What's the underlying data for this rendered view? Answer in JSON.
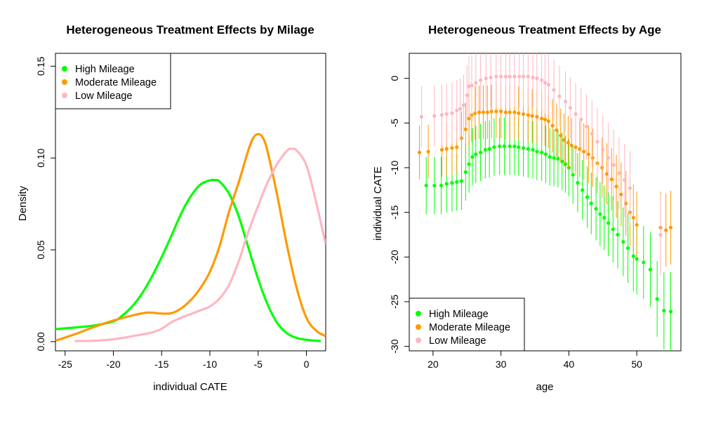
{
  "chart_data": [
    {
      "type": "line",
      "title": "Heterogeneous Treatment Effects by Milage",
      "xlabel": "individual CATE",
      "ylabel": "Density",
      "xlim": [
        -26,
        2
      ],
      "ylim": [
        -0.005,
        0.157
      ],
      "xticks": [
        -25,
        -20,
        -15,
        -10,
        -5,
        0
      ],
      "yticks": [
        0.0,
        0.05,
        0.1,
        0.15
      ],
      "xtick_labels": [
        "-25",
        "-20",
        "-15",
        "-10",
        "-5",
        "0"
      ],
      "ytick_labels": [
        "0.00",
        "0.05",
        "0.10",
        "0.15"
      ],
      "grid": false,
      "legend_position": "top-left",
      "series": [
        {
          "name": "High Mileage",
          "color": "#00ff00",
          "x": [
            -26,
            -24,
            -22,
            -20,
            -19,
            -18,
            -17,
            -16,
            -15,
            -14,
            -13,
            -12,
            -11,
            -10,
            -9.5,
            -9,
            -8,
            -7,
            -6,
            -5,
            -4,
            -3,
            -2,
            -1,
            0,
            1.5
          ],
          "y": [
            0.0068,
            0.0077,
            0.0088,
            0.011,
            0.0145,
            0.0195,
            0.0265,
            0.0355,
            0.046,
            0.0575,
            0.0695,
            0.079,
            0.0855,
            0.0878,
            0.088,
            0.0872,
            0.0805,
            0.068,
            0.051,
            0.034,
            0.02,
            0.01,
            0.0045,
            0.002,
            0.001,
            0.0003
          ]
        },
        {
          "name": "Moderate Mileage",
          "color": "#ff9900",
          "x": [
            -26,
            -24,
            -22,
            -20,
            -18,
            -16.5,
            -15,
            -14,
            -13,
            -12,
            -11,
            -10,
            -9,
            -8,
            -7,
            -6,
            -5.5,
            -5,
            -4.5,
            -4,
            -3,
            -2,
            -1,
            0,
            1,
            2
          ],
          "y": [
            0.0005,
            0.004,
            0.008,
            0.0115,
            0.0143,
            0.0158,
            0.0153,
            0.0155,
            0.018,
            0.0225,
            0.029,
            0.038,
            0.052,
            0.071,
            0.087,
            0.1045,
            0.111,
            0.113,
            0.111,
            0.103,
            0.079,
            0.052,
            0.029,
            0.013,
            0.006,
            0.003
          ]
        },
        {
          "name": "Low Mileage",
          "color": "#ffb6c1",
          "x": [
            -24,
            -22,
            -20,
            -18,
            -16,
            -15,
            -14,
            -13,
            -12,
            -11,
            -10,
            -9,
            -8,
            -7,
            -6,
            -5,
            -4,
            -3,
            -2,
            -1.5,
            -1,
            0,
            1,
            2
          ],
          "y": [
            0.0003,
            0.0005,
            0.0013,
            0.003,
            0.005,
            0.007,
            0.0105,
            0.013,
            0.015,
            0.017,
            0.0192,
            0.0235,
            0.031,
            0.044,
            0.06,
            0.074,
            0.087,
            0.097,
            0.104,
            0.105,
            0.104,
            0.096,
            0.076,
            0.053
          ]
        }
      ]
    },
    {
      "type": "scatter",
      "title": "Heterogeneous Treatment Effects by Age",
      "xlabel": "age",
      "ylabel": "individual CATE",
      "xlim": [
        16.5,
        56.5
      ],
      "ylim": [
        -30.5,
        2.8
      ],
      "xticks": [
        20,
        30,
        40,
        50
      ],
      "yticks": [
        0,
        -5,
        -10,
        -15,
        -20,
        -25,
        -30
      ],
      "xtick_labels": [
        "20",
        "30",
        "40",
        "50"
      ],
      "ytick_labels": [
        "0",
        "-5",
        "-10",
        "-15",
        "-20",
        "-25",
        "-30"
      ],
      "grid": false,
      "legend_position": "bottom-left",
      "error_bars": "vertical intervals around each point",
      "series": [
        {
          "name": "High Mileage",
          "color": "#00ff00",
          "age": [
            19,
            20.2,
            21.2,
            22,
            22.8,
            23.5,
            24.2,
            24.8,
            25.3,
            25.8,
            26.3,
            27,
            27.7,
            28.3,
            29,
            29.8,
            30.5,
            31.3,
            32,
            32.6,
            33.3,
            34,
            34.7,
            35.3,
            36,
            36.6,
            37.2,
            37.8,
            38.4,
            39,
            39.5,
            40,
            40.6,
            41.3,
            42,
            42.7,
            43.3,
            44,
            44.6,
            45.2,
            45.8,
            46.5,
            47.2,
            48,
            48.7,
            49.5,
            50,
            51,
            52,
            53,
            54,
            55
          ],
          "cate": [
            -12,
            -12,
            -12,
            -11.8,
            -11.7,
            -11.6,
            -11.5,
            -10.5,
            -9.6,
            -8.8,
            -8.5,
            -8.3,
            -8,
            -7.9,
            -7.7,
            -7.6,
            -7.6,
            -7.6,
            -7.6,
            -7.7,
            -7.8,
            -7.9,
            -8,
            -8.2,
            -8.3,
            -8.5,
            -8.8,
            -8.9,
            -9,
            -9.3,
            -9.6,
            -10,
            -10.8,
            -11.7,
            -12.5,
            -13.3,
            -14,
            -14.6,
            -15.2,
            -15.6,
            -16.2,
            -16.9,
            -17.5,
            -18.3,
            -19,
            -19.9,
            -20.2,
            -20.6,
            -21.4,
            -24.7,
            -26,
            -26.1
          ]
        },
        {
          "name": "Moderate Mileage",
          "color": "#ff9900",
          "age": [
            18,
            19.3,
            21.3,
            22,
            22.8,
            23.5,
            24.2,
            24.8,
            25.3,
            25.7,
            26.2,
            26.8,
            27.4,
            28,
            28.6,
            29.3,
            30,
            30.7,
            31.3,
            32,
            32.6,
            33.3,
            34,
            34.6,
            35.3,
            36,
            36.5,
            37,
            37.6,
            38.2,
            38.8,
            39.3,
            39.9,
            40.4,
            41,
            41.6,
            42.2,
            42.9,
            43.5,
            44.2,
            44.9,
            45.6,
            46.3,
            47,
            47.7,
            48.4,
            49,
            49.5,
            50,
            53.5,
            54.3,
            55
          ],
          "cate": [
            -8.3,
            -8.2,
            -8,
            -7.9,
            -7.8,
            -7.7,
            -6.7,
            -5.7,
            -4.5,
            -4.1,
            -3.9,
            -3.8,
            -3.8,
            -3.8,
            -3.7,
            -3.7,
            -3.7,
            -3.8,
            -3.8,
            -3.8,
            -3.9,
            -4,
            -4.1,
            -4.2,
            -4.3,
            -4.5,
            -4.6,
            -4.8,
            -5.3,
            -5.8,
            -6.4,
            -6.9,
            -7.2,
            -7.5,
            -7.7,
            -7.9,
            -8.2,
            -8.5,
            -8.9,
            -9.5,
            -10,
            -10.7,
            -11.3,
            -12.1,
            -13,
            -14,
            -15,
            -15.6,
            -16.4,
            -16.7,
            -17,
            -16.7
          ]
        },
        {
          "name": "Low Mileage",
          "color": "#ffb6c1",
          "age": [
            18.3,
            20.2,
            21.3,
            22,
            22.8,
            23.5,
            24,
            24.5,
            25,
            25.3,
            25.7,
            26.3,
            27,
            27.8,
            28.5,
            29.3,
            30,
            30.7,
            31.3,
            32,
            32.7,
            33.3,
            34,
            34.7,
            35.3,
            36,
            36.5,
            37,
            37.8,
            38.6,
            39.5,
            40.2,
            41,
            41.8,
            42.6,
            43.4,
            44.2,
            45,
            45.8,
            46.6,
            47.4,
            48.2,
            49,
            53.5
          ],
          "cate": [
            -4.3,
            -4.2,
            -4.1,
            -4,
            -3.9,
            -3.6,
            -3.4,
            -3,
            -1.9,
            -0.9,
            -0.8,
            -0.5,
            -0.2,
            0,
            0.1,
            0.2,
            0.2,
            0.2,
            0.2,
            0.2,
            0.2,
            0.2,
            0.2,
            0.1,
            0,
            -0.2,
            -0.5,
            -0.7,
            -1.3,
            -2,
            -2.6,
            -3.3,
            -4,
            -4.6,
            -5.4,
            -6.2,
            -7.1,
            -8,
            -8.9,
            -9.7,
            -10.6,
            -11.4,
            -12.3,
            -17.5
          ]
        }
      ]
    }
  ]
}
